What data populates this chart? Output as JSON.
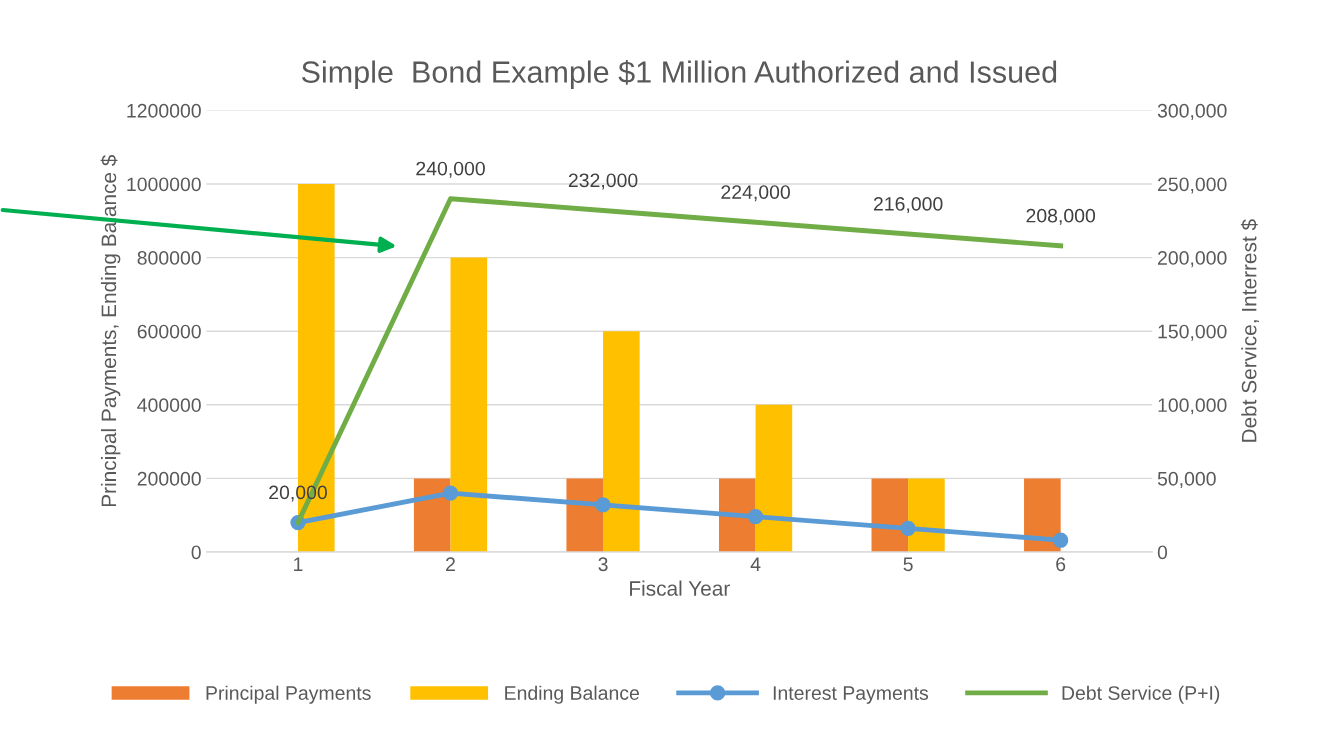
{
  "chart_data": {
    "type": "bar",
    "title": "Simple  Bond Example $1 Million Authorized and Issued",
    "xlabel": "Fiscal Year",
    "ylabel": "Principal Payments, Ending Balance $",
    "y2label": "Debt Service, Interrest $",
    "categories": [
      "1",
      "2",
      "3",
      "4",
      "5",
      "6"
    ],
    "series": [
      {
        "name": "Principal Payments",
        "color": "#ed7d31",
        "values": [
          0,
          200000,
          200000,
          200000,
          200000,
          200000
        ]
      },
      {
        "name": "Ending Balance",
        "color": "#ffc000",
        "values": [
          1000000,
          800000,
          600000,
          400000,
          200000,
          0
        ]
      },
      {
        "name": "Interest Payments",
        "type": "line",
        "axis": "y2",
        "marker": "circle",
        "color": "#5b9bd5",
        "values": [
          20000,
          40000,
          32000,
          24000,
          16000,
          8000
        ]
      },
      {
        "name": "Debt Service (P+I)",
        "type": "line",
        "axis": "y2",
        "marker": "none",
        "color": "#70ad47",
        "values": [
          20000,
          240000,
          232000,
          224000,
          216000,
          208000
        ],
        "value_labels": [
          "20,000",
          "240,000",
          "232,000",
          "224,000",
          "216,000",
          "208,000"
        ]
      }
    ],
    "ylim": [
      0,
      1200000
    ],
    "yticks": [
      0,
      200000,
      400000,
      600000,
      800000,
      1000000,
      1200000
    ],
    "y2lim": [
      0,
      300000
    ],
    "y2ticks": [
      {
        "value": 0,
        "label": "0"
      },
      {
        "value": 50000,
        "label": "50,000"
      },
      {
        "value": 100000,
        "label": "100,000"
      },
      {
        "value": 150000,
        "label": "150,000"
      },
      {
        "value": 200000,
        "label": "200,000"
      },
      {
        "value": 250000,
        "label": "250,000"
      },
      {
        "value": 300000,
        "label": "300,000"
      }
    ],
    "grid": "y",
    "legend": "bottom"
  }
}
